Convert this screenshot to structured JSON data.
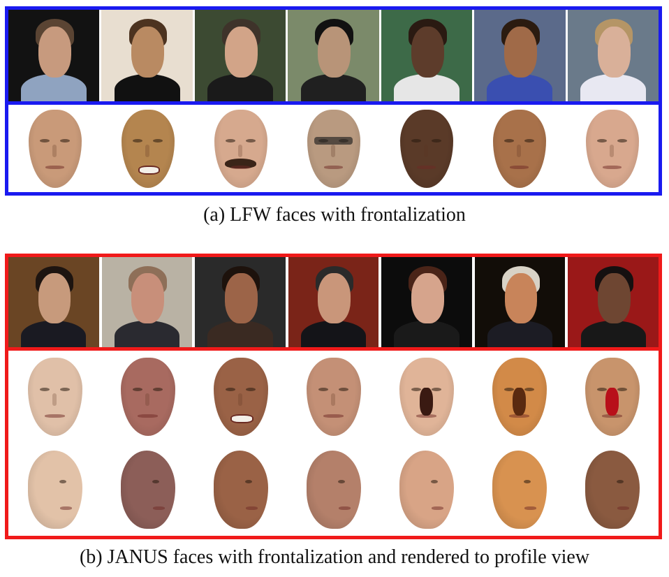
{
  "captions": {
    "a": "(a) LFW faces with frontalization",
    "b": "(b) JANUS faces with frontalization and rendered to profile view"
  },
  "colors": {
    "panel_a_border": "#1a1af0",
    "panel_b_border": "#f01a1a"
  },
  "lfw_photos": [
    {
      "bg": "#121212",
      "skin": "#c79a7e",
      "hair": "#5a4433",
      "cloth": "#8fa3c0"
    },
    {
      "bg": "#e8ded0",
      "skin": "#b98a62",
      "hair": "#4c3320",
      "cloth": "#111111"
    },
    {
      "bg": "#3c4a32",
      "skin": "#d2a488",
      "hair": "#3e332a",
      "cloth": "#1a1a1a"
    },
    {
      "bg": "#7b8a6a",
      "skin": "#b89478",
      "hair": "#111111",
      "cloth": "#202020"
    },
    {
      "bg": "#3d6a48",
      "skin": "#5d3c2b",
      "hair": "#2a1a12",
      "cloth": "#e6e6e6"
    },
    {
      "bg": "#5b6a8a",
      "skin": "#a06a48",
      "hair": "#2b1b10",
      "cloth": "#3a4fb0"
    },
    {
      "bg": "#6a7a8a",
      "skin": "#d9b099",
      "hair": "#b59566",
      "cloth": "#e8e8f2"
    }
  ],
  "lfw_faces": [
    {
      "skin": "#c99a79",
      "feature": "none"
    },
    {
      "skin": "#b4854f",
      "feature": "smile"
    },
    {
      "skin": "#d6a98e",
      "feature": "mustache"
    },
    {
      "skin": "#b99a80",
      "feature": "shades"
    },
    {
      "skin": "#5a3a28",
      "feature": "none"
    },
    {
      "skin": "#a8714a",
      "feature": "none"
    },
    {
      "skin": "#d8a88e",
      "feature": "none"
    }
  ],
  "janus_photos": [
    {
      "bg": "#6a4524",
      "skin": "#c79a7c",
      "hair": "#1d1410",
      "cloth": "#1a1a22"
    },
    {
      "bg": "#b9b2a4",
      "skin": "#c88f7a",
      "hair": "#8e6f58",
      "cloth": "#2a2a30"
    },
    {
      "bg": "#2a2a2a",
      "skin": "#9c6448",
      "hair": "#1d120c",
      "cloth": "#3a2a22"
    },
    {
      "bg": "#7a2418",
      "skin": "#c9967a",
      "hair": "#2a2a2a",
      "cloth": "#141418"
    },
    {
      "bg": "#0c0c0c",
      "skin": "#d6a48c",
      "hair": "#4a2418",
      "cloth": "#1a1a1a"
    },
    {
      "bg": "#120d08",
      "skin": "#c8845a",
      "hair": "#d8d2c6",
      "cloth": "#1c1c24"
    },
    {
      "bg": "#9a1818",
      "skin": "#6e4632",
      "hair": "#151010",
      "cloth": "#181818"
    }
  ],
  "janus_frontal": [
    {
      "skin": "#e0c0a8",
      "patch": "none"
    },
    {
      "skin": "#a86a60",
      "patch": "none"
    },
    {
      "skin": "#9a6246",
      "patch": "smile"
    },
    {
      "skin": "#c49076",
      "patch": "none"
    },
    {
      "skin": "#e0b498",
      "patch": "#3a1a12"
    },
    {
      "skin": "#d28a48",
      "patch": "#5a2a10"
    },
    {
      "skin": "#c8946c",
      "patch": "#b8101a"
    }
  ],
  "janus_profile": [
    {
      "skin": "#e2c2a8"
    },
    {
      "skin": "#8c5e58"
    },
    {
      "skin": "#9a6246"
    },
    {
      "skin": "#b4806a"
    },
    {
      "skin": "#d8a486"
    },
    {
      "skin": "#d89250"
    },
    {
      "skin": "#8a5a40"
    }
  ]
}
